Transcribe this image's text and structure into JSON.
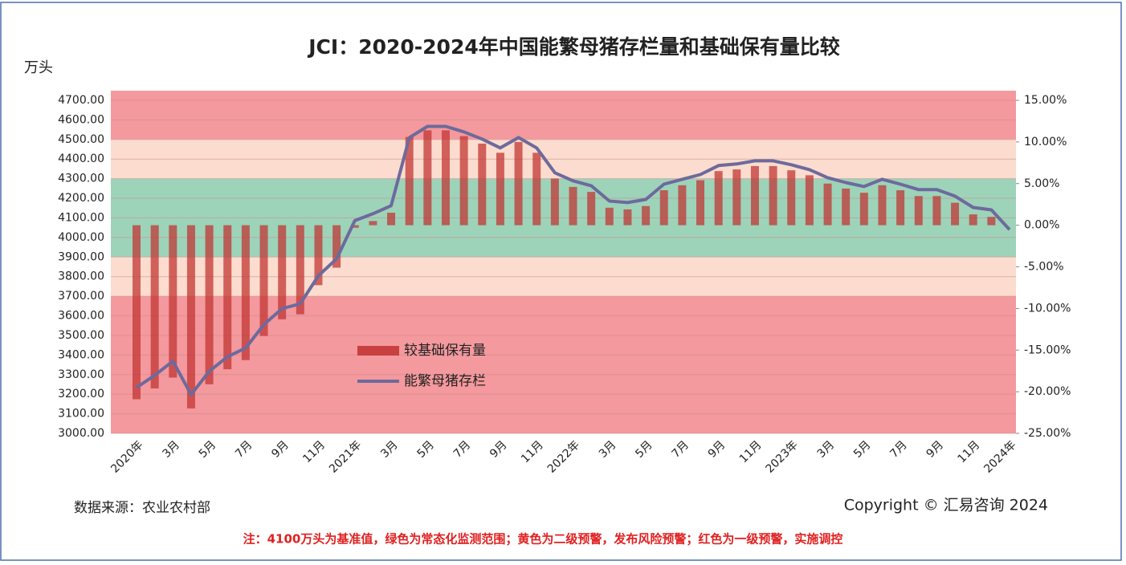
{
  "chart_data": {
    "type": "combo",
    "title": "JCI：2020-2024年中国能繁母猪存栏量和基础保有量比较",
    "y_label": "万头",
    "source": "数据来源：农业农村部",
    "copyright": "Copyright © 汇易咨询 2024",
    "note": "注：4100万头为基准值，绿色为常态化监测范围；黄色为二级预警，发布风险预警；红色为一级预警，实施调控",
    "categories": [
      "2020年",
      null,
      "3月",
      null,
      "5月",
      null,
      "7月",
      null,
      "9月",
      null,
      "11月",
      null,
      "2021年",
      null,
      "3月",
      null,
      "5月",
      null,
      "7月",
      null,
      "9月",
      null,
      "11月",
      null,
      "2022年",
      null,
      "3月",
      null,
      "5月",
      null,
      "7月",
      null,
      "9月",
      null,
      "11月",
      null,
      "2023年",
      null,
      "3月",
      null,
      "5月",
      null,
      "7月",
      null,
      "9月",
      null,
      "11月",
      null,
      "2024年"
    ],
    "series": [
      {
        "name": "较基础保有量",
        "type": "bar",
        "axis": "y2",
        "color": "#c0302f",
        "values": [
          -20.9,
          -19.6,
          -18.3,
          -22.0,
          -19.1,
          -17.3,
          -16.2,
          -13.3,
          -11.3,
          -10.7,
          -7.2,
          -5.1,
          -0.3,
          0.5,
          1.5,
          10.6,
          11.4,
          11.4,
          10.7,
          9.8,
          8.7,
          10.0,
          8.7,
          5.6,
          4.6,
          4.0,
          2.1,
          1.9,
          2.3,
          4.2,
          4.8,
          5.4,
          6.5,
          6.7,
          7.1,
          7.1,
          6.6,
          6.0,
          5.0,
          4.4,
          3.9,
          4.8,
          4.2,
          3.5,
          3.5,
          2.7,
          1.3,
          1.0,
          0
        ]
      },
      {
        "name": "能繁母猪存栏",
        "type": "line",
        "color": "#6d6a9c",
        "values": [
          3234,
          3296,
          3369,
          3198,
          3317,
          3391,
          3436,
          3555,
          3637,
          3661,
          3805,
          3891,
          4086,
          4121,
          4162,
          4510,
          4567,
          4567,
          4539,
          4502,
          4457,
          4510,
          4457,
          4330,
          4289,
          4264,
          4186,
          4178,
          4194,
          4272,
          4297,
          4321,
          4367,
          4375,
          4391,
          4391,
          4371,
          4346,
          4305,
          4280,
          4260,
          4297,
          4272,
          4244,
          4244,
          4211,
          4153,
          4141,
          4040
        ]
      }
    ],
    "ylim": [
      3000,
      4700
    ],
    "yticks": [
      {
        "value": 3000,
        "label": "3000.00"
      },
      {
        "value": 3100,
        "label": "3100.00"
      },
      {
        "value": 3200,
        "label": "3200.00"
      },
      {
        "value": 3300,
        "label": "3300.00"
      },
      {
        "value": 3400,
        "label": "3400.00"
      },
      {
        "value": 3500,
        "label": "3500.00"
      },
      {
        "value": 3600,
        "label": "3600.00"
      },
      {
        "value": 3700,
        "label": "3700.00"
      },
      {
        "value": 3800,
        "label": "3800.00"
      },
      {
        "value": 3900,
        "label": "3900.00"
      },
      {
        "value": 4000,
        "label": "4000.00"
      },
      {
        "value": 4100,
        "label": "4100.00"
      },
      {
        "value": 4200,
        "label": "4200.00"
      },
      {
        "value": 4300,
        "label": "4300.00"
      },
      {
        "value": 4400,
        "label": "4400.00"
      },
      {
        "value": 4500,
        "label": "4500.00"
      },
      {
        "value": 4600,
        "label": "4600.00"
      },
      {
        "value": 4700,
        "label": "4700.00"
      }
    ],
    "y2lim": [
      -25,
      15
    ],
    "y2ticks": [
      {
        "value": -25,
        "label": "-25.00%"
      },
      {
        "value": -20,
        "label": "-20.00%"
      },
      {
        "value": -15,
        "label": "-15.00%"
      },
      {
        "value": -10,
        "label": "-10.00%"
      },
      {
        "value": -5,
        "label": "-5.00%"
      },
      {
        "value": 0,
        "label": "0.00%"
      },
      {
        "value": 5,
        "label": "5.00%"
      },
      {
        "value": 10,
        "label": "10.00%"
      },
      {
        "value": 15,
        "label": "15.00%"
      }
    ],
    "grid": true,
    "bands": [
      {
        "from": 4500,
        "color": "#f4999d"
      },
      {
        "from": 4300,
        "to": 4500,
        "color": "#fbdcce"
      },
      {
        "from": 3900,
        "to": 4300,
        "color": "#9dd3b9"
      },
      {
        "from": 3700,
        "to": 3900,
        "color": "#fbdcce"
      },
      {
        "to": 3700,
        "color": "#f4999d"
      }
    ]
  }
}
